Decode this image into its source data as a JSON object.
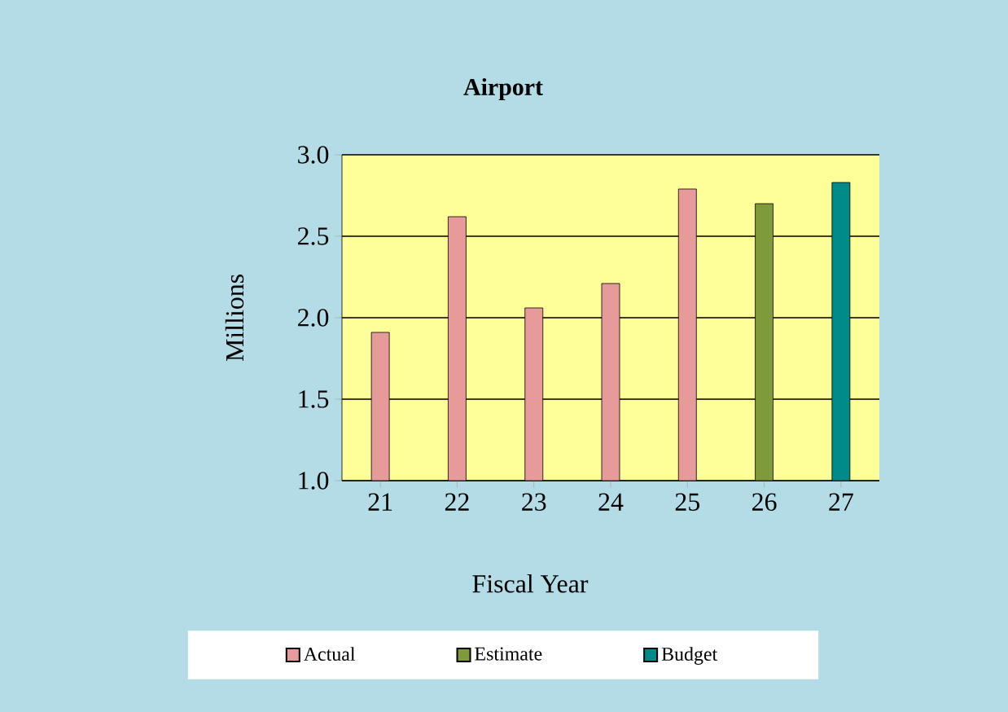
{
  "chart_data": {
    "type": "bar",
    "title": "Airport",
    "xlabel": "Fiscal Year",
    "ylabel": "Millions",
    "categories": [
      "21",
      "22",
      "23",
      "24",
      "25",
      "26",
      "27"
    ],
    "series": [
      {
        "name": "Actual",
        "color": "#e79a9a",
        "values": [
          1.91,
          2.62,
          2.06,
          2.21,
          2.79,
          null,
          null
        ]
      },
      {
        "name": "Estimate",
        "color": "#7f9a3a",
        "values": [
          null,
          null,
          null,
          null,
          null,
          2.7,
          null
        ]
      },
      {
        "name": "Budget",
        "color": "#008a8a",
        "values": [
          null,
          null,
          null,
          null,
          null,
          null,
          2.83
        ]
      }
    ],
    "ylim": [
      1.0,
      3.0
    ],
    "yticks": [
      {
        "value": 1.0,
        "label": "1.0"
      },
      {
        "value": 1.5,
        "label": "1.5"
      },
      {
        "value": 2.0,
        "label": "2.0"
      },
      {
        "value": 2.5,
        "label": "2.5"
      },
      {
        "value": 3.0,
        "label": "3.0"
      }
    ],
    "grid": "y",
    "legend": "bottom"
  }
}
